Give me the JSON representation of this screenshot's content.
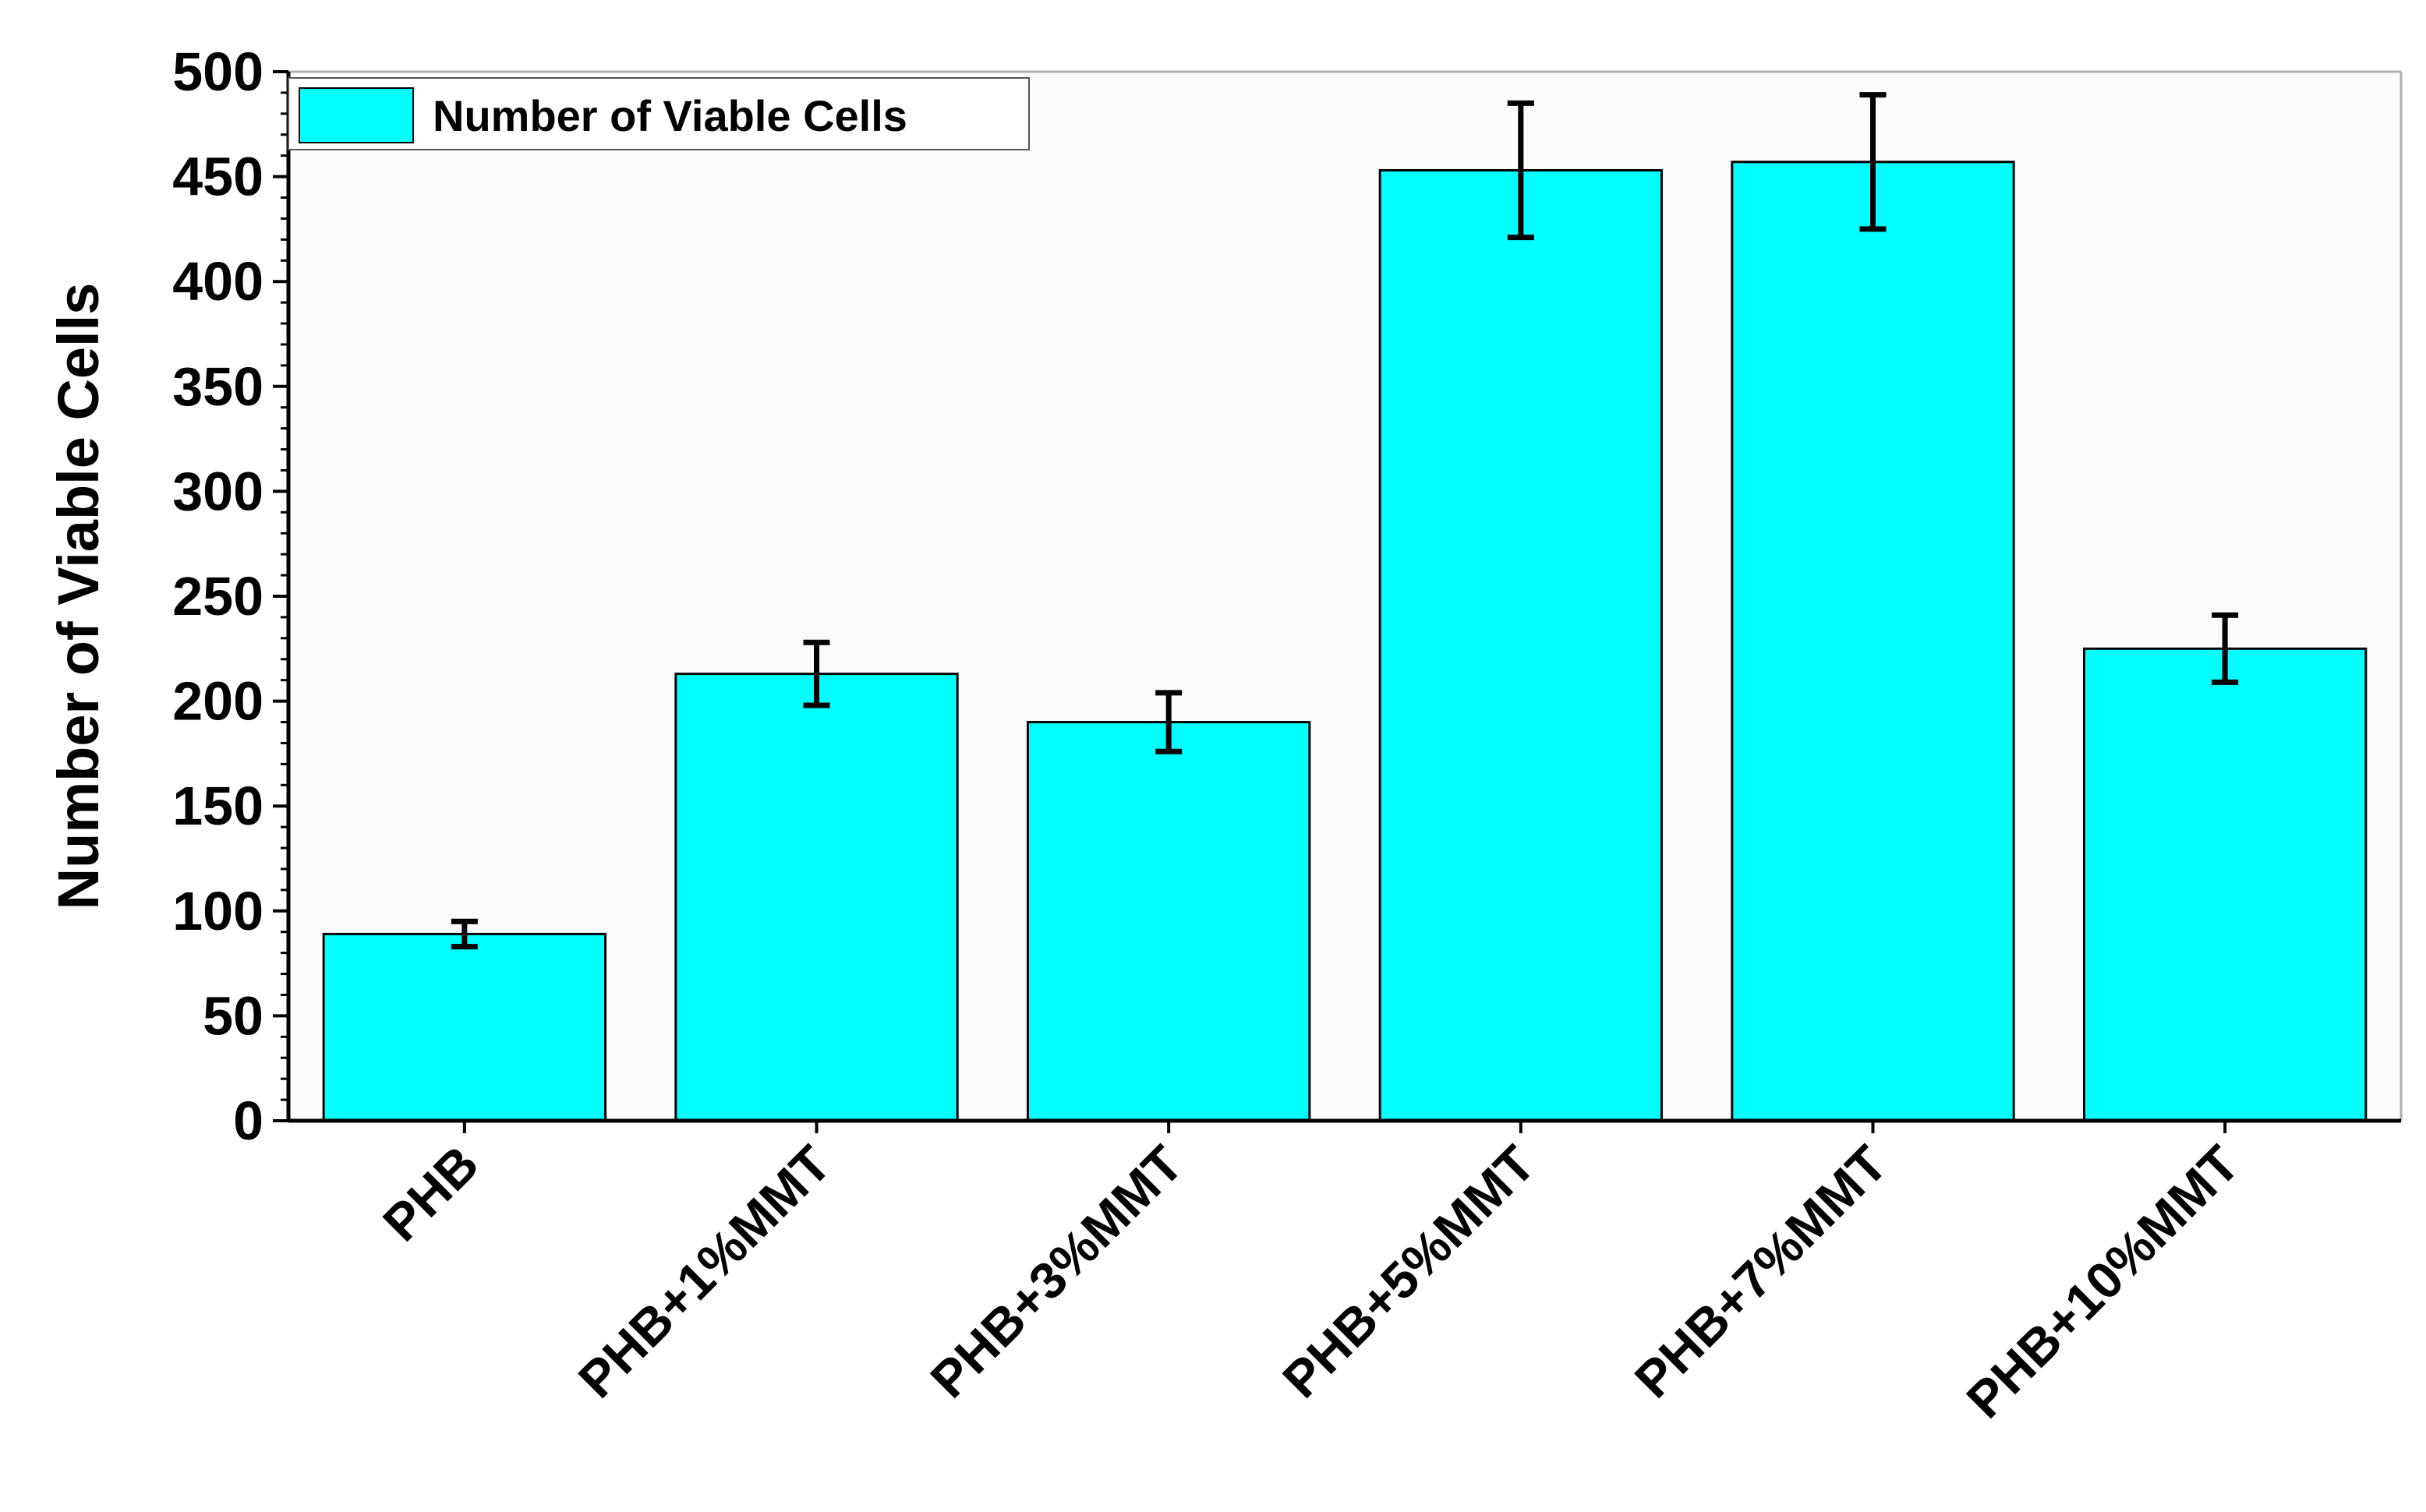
{
  "chart_data": {
    "type": "bar",
    "title": "",
    "xlabel": "",
    "ylabel": "Number of Viable Cells",
    "ylim": [
      0,
      500
    ],
    "yticks": [
      0,
      50,
      100,
      150,
      200,
      250,
      300,
      350,
      400,
      450,
      500
    ],
    "y_minor_step": 10,
    "grid": false,
    "legend_position": "top-left",
    "categories": [
      "PHB",
      "PHB+1%MMT",
      "PHB+3%MMT",
      "PHB+5%MMT",
      "PHB+7%MMT",
      "PHB+10%MMT"
    ],
    "series": [
      {
        "name": "Number of Viable Cells",
        "color": "#00FFFF",
        "values": [
          89,
          213,
          190,
          453,
          457,
          225
        ],
        "errors": [
          6,
          15,
          14,
          32,
          32,
          16
        ]
      }
    ]
  }
}
